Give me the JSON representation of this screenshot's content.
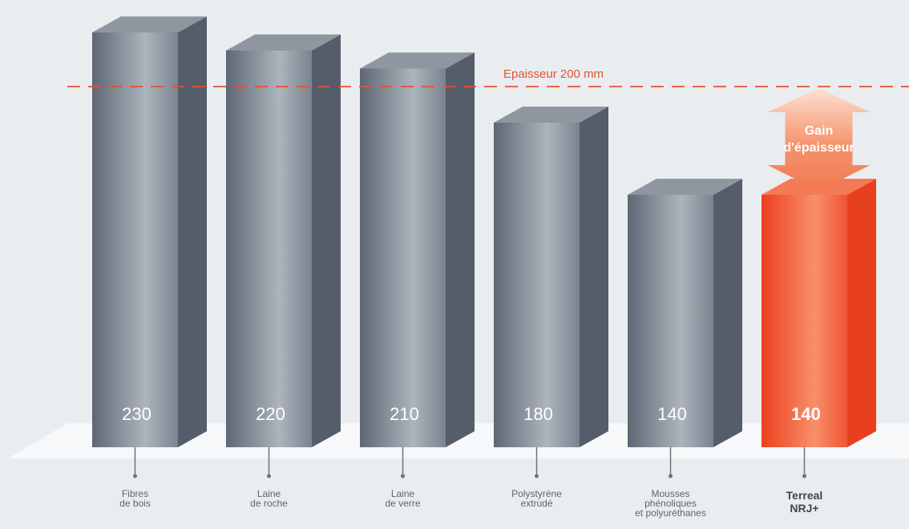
{
  "chart_data": {
    "type": "bar",
    "categories": [
      [
        "Fibres",
        "de bois"
      ],
      [
        "Laine",
        "de roche"
      ],
      [
        "Laine",
        "de verre"
      ],
      [
        "Polystyrène",
        "extrudé"
      ],
      [
        "Mousses",
        "phénoliques",
        "et polyuréthanes"
      ],
      [
        "Terreal",
        "NRJ+"
      ]
    ],
    "values": [
      230,
      220,
      210,
      180,
      140,
      140
    ],
    "value_labels": [
      "230",
      "220",
      "210",
      "180",
      "140",
      "140"
    ],
    "highlight_index": 5,
    "reference_line": {
      "value": 200,
      "label": "Epaisseur 200 mm"
    },
    "annotation": {
      "lines": [
        "Gain",
        "d'épaisseur"
      ]
    },
    "ylim": [
      0,
      250
    ],
    "colors": {
      "bar": "#6a737e",
      "highlight": "#ee4a28",
      "reference": "#e4532f",
      "annotation": "#f58a66"
    }
  }
}
